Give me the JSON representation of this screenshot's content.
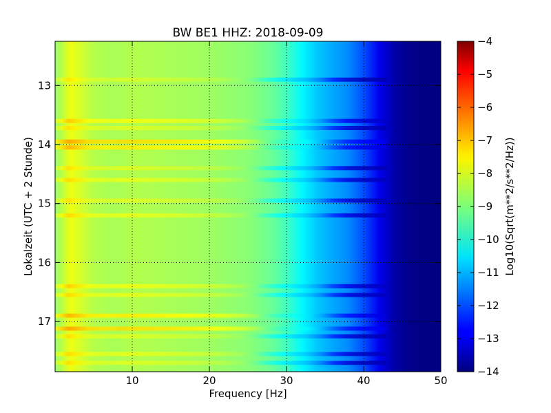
{
  "chart_data": {
    "type": "heatmap",
    "title": "BW BE1 HHZ: 2018-09-09",
    "xlabel": "Frequency [Hz]",
    "ylabel": "Lokalzeit (UTC + 2 Stunde)",
    "colorbar_label": "Log10(Sqrt(m**2/s**2/Hz))",
    "xlim": [
      0,
      50
    ],
    "ylim_hours": [
      12.25,
      17.85
    ],
    "y_axis_inverted": true,
    "x_ticks": [
      10,
      20,
      30,
      40,
      50
    ],
    "x_tick_labels": [
      "10",
      "20",
      "30",
      "40",
      "50"
    ],
    "y_ticks": [
      13,
      14,
      15,
      16,
      17
    ],
    "y_tick_labels": [
      "13",
      "14",
      "15",
      "16",
      "17"
    ],
    "grid": true,
    "colormap": "jet",
    "colorbar_range": [
      -14,
      -4
    ],
    "colorbar_ticks": [
      -4,
      -5,
      -6,
      -7,
      -8,
      -9,
      -10,
      -11,
      -12,
      -13,
      -14
    ],
    "colorbar_tick_labels": [
      "−4",
      "−5",
      "−6",
      "−7",
      "−8",
      "−9",
      "−10",
      "−11",
      "−12",
      "−13",
      "−14"
    ],
    "frequency_profile": {
      "freq_hz": [
        0,
        1,
        2,
        3,
        5,
        8,
        10,
        15,
        20,
        25,
        28,
        30,
        32,
        34,
        36,
        38,
        40,
        42,
        44,
        46,
        50
      ],
      "log_psd": [
        -8.8,
        -8.4,
        -7.9,
        -8.1,
        -8.5,
        -8.6,
        -8.5,
        -8.6,
        -8.7,
        -8.9,
        -9.2,
        -9.6,
        -10.3,
        -10.8,
        -11.1,
        -11.4,
        -12.0,
        -12.9,
        -13.6,
        -13.9,
        -14.0
      ]
    },
    "time_bands": [
      {
        "hour": 12.9,
        "offset": 0.25
      },
      {
        "hour": 13.6,
        "offset": 0.45
      },
      {
        "hour": 13.72,
        "offset": 0.3
      },
      {
        "hour": 13.95,
        "offset": 0.7
      },
      {
        "hour": 14.05,
        "offset": 0.6
      },
      {
        "hour": 14.4,
        "offset": 0.3
      },
      {
        "hour": 14.6,
        "offset": 0.35
      },
      {
        "hour": 14.95,
        "offset": 0.3
      },
      {
        "hour": 15.2,
        "offset": 0.35
      },
      {
        "hour": 16.4,
        "offset": 0.4
      },
      {
        "hour": 16.55,
        "offset": 0.35
      },
      {
        "hour": 16.9,
        "offset": 0.6
      },
      {
        "hour": 17.12,
        "offset": 0.7
      },
      {
        "hour": 17.25,
        "offset": 0.3
      },
      {
        "hour": 17.55,
        "offset": 0.35
      },
      {
        "hour": 17.7,
        "offset": 0.3
      }
    ]
  }
}
